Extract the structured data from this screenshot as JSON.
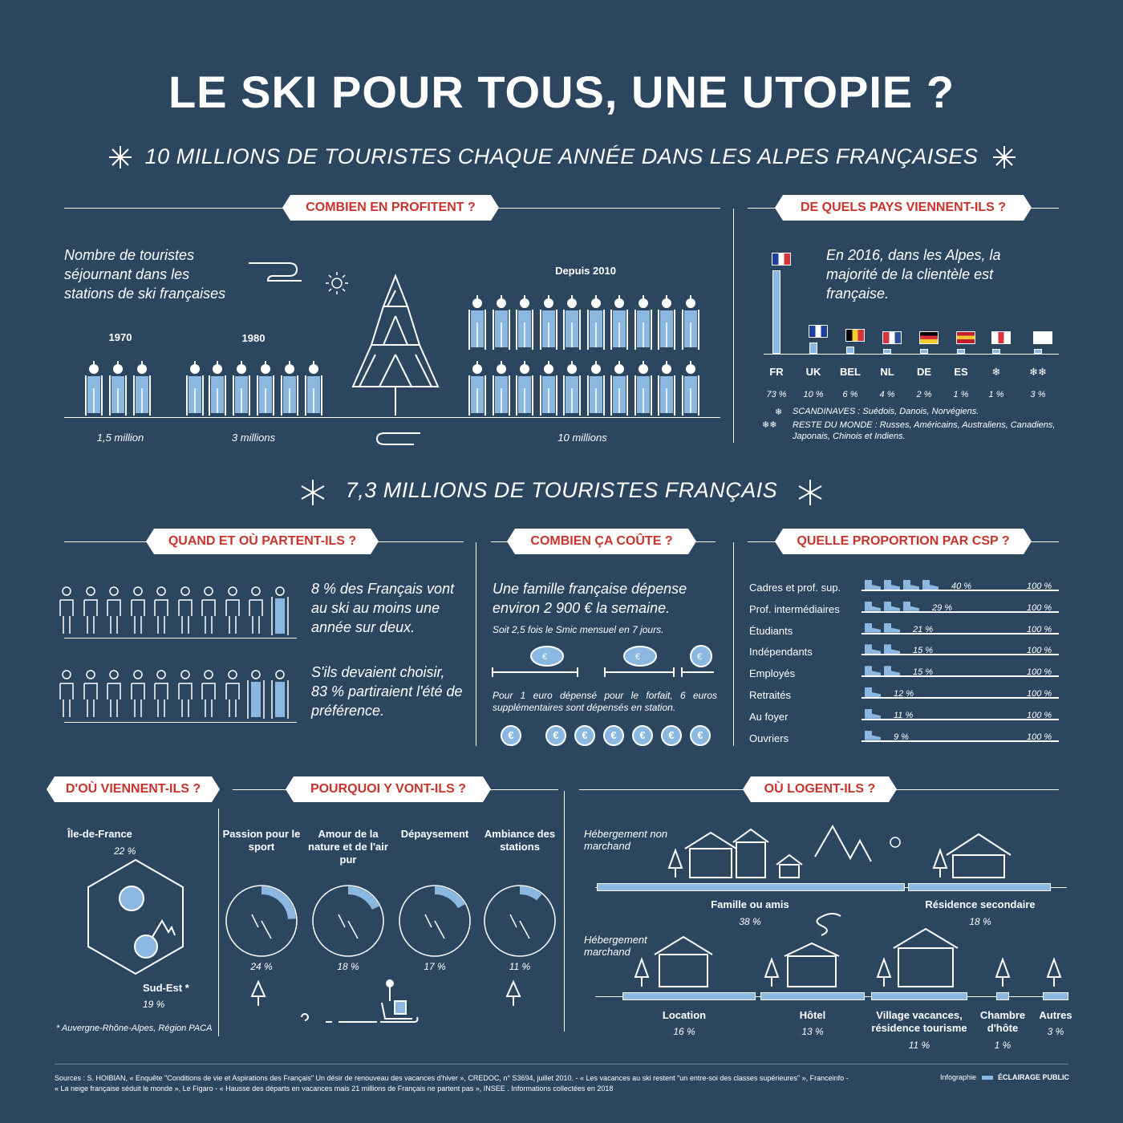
{
  "title": "LE SKI POUR TOUS, UNE UTOPIE ?",
  "subtitle1": "10 MILLIONS DE TOURISTES CHAQUE ANNÉE DANS LES ALPES FRANÇAISES",
  "subtitle2": "7,3 MILLIONS DE TOURISTES FRANÇAIS",
  "colors": {
    "background": "#2c4660",
    "accent_red": "#c8342c",
    "light_blue": "#8ab8e0"
  },
  "combien": {
    "banner": "COMBIEN EN PROFITENT ?",
    "intro": "Nombre de touristes séjournant dans les stations de ski françaises",
    "periods": [
      {
        "label": "1970",
        "value": "1,5 million"
      },
      {
        "label": "1980",
        "value": "3 millions"
      },
      {
        "label": "Depuis 2010",
        "value": "10 millions"
      }
    ]
  },
  "pays": {
    "banner": "DE QUELS PAYS VIENNENT-ILS ?",
    "intro": "En 2016, dans les Alpes, la majorité de la clientèle est française.",
    "countries": [
      {
        "code": "FR",
        "pct": "73 %",
        "value": 73
      },
      {
        "code": "UK",
        "pct": "10 %",
        "value": 10
      },
      {
        "code": "BEL",
        "pct": "6 %",
        "value": 6
      },
      {
        "code": "NL",
        "pct": "4 %",
        "value": 4
      },
      {
        "code": "DE",
        "pct": "2 %",
        "value": 2
      },
      {
        "code": "ES",
        "pct": "1 %",
        "value": 1
      },
      {
        "code": "❄",
        "pct": "1 %",
        "value": 1
      },
      {
        "code": "❄❄",
        "pct": "3 %",
        "value": 3
      }
    ],
    "note1": "SCANDINAVES : Suédois, Danois, Norvégiens.",
    "note2": "RESTE DU MONDE : Russes, Américains, Australiens, Canadiens, Japonais, Chinois et Indiens."
  },
  "quand": {
    "banner": "QUAND ET OÙ PARTENT-ILS ?",
    "text1": "8 % des Français vont au ski au moins une année sur deux.",
    "text2": "S'ils devaient choisir, 83 % partiraient l'été de préférence."
  },
  "cout": {
    "banner": "COMBIEN ÇA COÛTE ?",
    "text1": "Une famille française dépense environ 2 900 € la semaine.",
    "text2": "Soit 2,5 fois le Smic mensuel en 7 jours.",
    "text3": "Pour 1 euro dépensé pour le forfait, 6 euros supplémentaires sont dépensés en station."
  },
  "csp": {
    "banner": "QUELLE PROPORTION PAR CSP ?",
    "rows": [
      {
        "name": "Cadres et prof. sup.",
        "pct": "40 %",
        "value": 40
      },
      {
        "name": "Prof. intermédiaires",
        "pct": "29 %",
        "value": 29
      },
      {
        "name": "Étudiants",
        "pct": "21 %",
        "value": 21
      },
      {
        "name": "Indépendants",
        "pct": "15 %",
        "value": 15
      },
      {
        "name": "Employés",
        "pct": "15 %",
        "value": 15
      },
      {
        "name": "Retraités",
        "pct": "12 %",
        "value": 12
      },
      {
        "name": "Au foyer",
        "pct": "11 %",
        "value": 11
      },
      {
        "name": "Ouvriers",
        "pct": "9 %",
        "value": 9
      }
    ],
    "total": "100 %"
  },
  "dou": {
    "banner": "D'OÙ VIENNENT-ILS ?",
    "idf": "Île-de-France",
    "idf_pct": "22 %",
    "se": "Sud-Est *",
    "se_pct": "19 %",
    "note": "* Auvergne-Rhône-Alpes, Région PACA"
  },
  "pourquoi": {
    "banner": "POURQUOI Y VONT-ILS ?",
    "items": [
      {
        "label": "Passion pour le sport",
        "pct": "24 %",
        "value": 24
      },
      {
        "label": "Amour de la nature et de l'air pur",
        "pct": "18 %",
        "value": 18
      },
      {
        "label": "Dépaysement",
        "pct": "17 %",
        "value": 17
      },
      {
        "label": "Ambiance des stations",
        "pct": "11 %",
        "value": 11
      }
    ]
  },
  "logent": {
    "banner": "OÙ LOGENT-ILS ?",
    "non_marchand": "Hébergement non marchand",
    "marchand": "Hébergement marchand",
    "items": [
      {
        "label": "Famille ou amis",
        "pct": "38 %"
      },
      {
        "label": "Résidence secondaire",
        "pct": "18 %"
      },
      {
        "label": "Location",
        "pct": "16 %"
      },
      {
        "label": "Hôtel",
        "pct": "13 %"
      },
      {
        "label": "Village vacances, résidence tourisme",
        "pct": "11 %"
      },
      {
        "label": "Chambre d'hôte",
        "pct": "1 %"
      },
      {
        "label": "Autres",
        "pct": "3 %"
      }
    ]
  },
  "footer": {
    "sources1": "Sources : S. HOIBIAN, « Enquête \"Conditions de vie et Aspirations des Français\" Un désir de renouveau des vacances d'hiver », CREDOC, n° S3694, juillet 2010. - « Les vacances au ski restent \"un entre-soi des classes supérieures\" », Franceinfo -",
    "sources2": "« La neige française séduit le monde », Le Figaro - « Hausse des départs en vacances mais 21 millions de Français ne partent pas », INSEE . Informations collectées en 2018",
    "credit_label": "Infographie",
    "credit": "ÉCLAIRAGE PUBLIC"
  }
}
